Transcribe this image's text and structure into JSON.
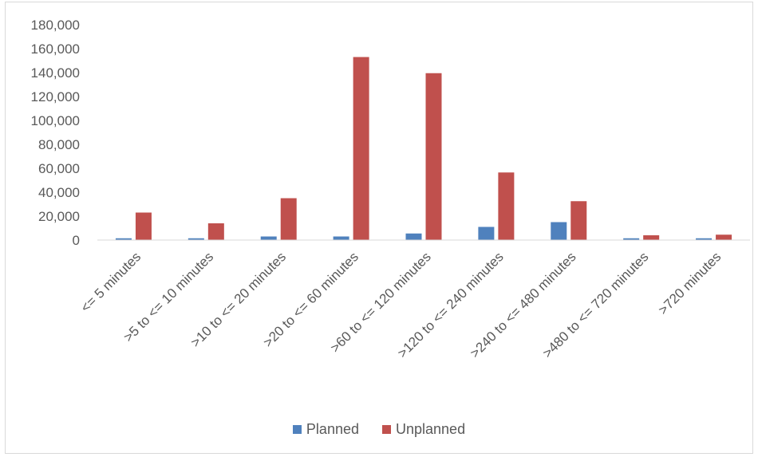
{
  "chart_data": {
    "type": "bar",
    "categories": [
      "<= 5 minutes",
      ">5 to <= 10 minutes",
      ">10 to <= 20 minutes",
      ">20 to <= 60 minutes",
      ">60 to <= 120 minutes",
      ">120 to <= 240 minutes",
      ">240 to <= 480 minutes",
      ">480 to <= 720 minutes",
      ">720 minutes"
    ],
    "series": [
      {
        "name": "Planned",
        "color": "#4f81bd",
        "values": [
          1500,
          1500,
          3000,
          3000,
          5500,
          11000,
          15000,
          1500,
          1500
        ]
      },
      {
        "name": "Unplanned",
        "color": "#c0504d",
        "values": [
          23000,
          14000,
          35000,
          153000,
          139500,
          56500,
          32500,
          4000,
          4500
        ]
      }
    ],
    "yticks": [
      "0",
      "20,000",
      "40,000",
      "60,000",
      "80,000",
      "100,000",
      "120,000",
      "140,000",
      "160,000",
      "180,000"
    ],
    "ylim": [
      0,
      180000
    ],
    "grid": false,
    "legend_position": "bottom"
  }
}
